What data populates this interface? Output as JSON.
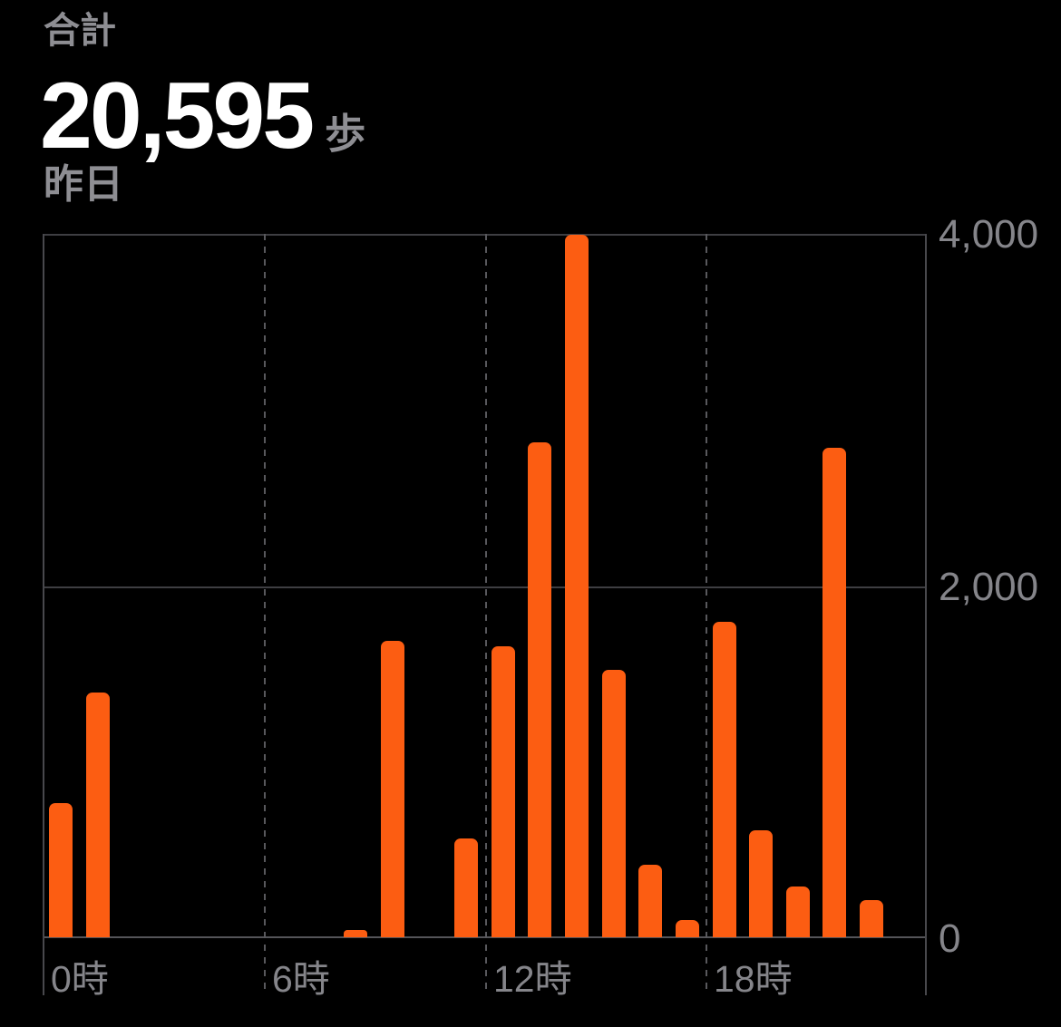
{
  "header": {
    "total_label": "合計",
    "total_value": "20,595",
    "unit": "歩",
    "period_label": "昨日"
  },
  "colors": {
    "background": "#000000",
    "bar": "#fc5d12",
    "value_text": "#ffffff",
    "header_gray": "#8e8e93",
    "axis_label": "#85858a",
    "gridline": "#3e3e42",
    "baseline": "#545458",
    "border_line": "#48484c",
    "dashed_line": "#58585c"
  },
  "chart_data": {
    "type": "bar",
    "title": "合計 20,595 歩 (昨日)",
    "xlabel": "",
    "ylabel": "",
    "unit": "歩",
    "xlim_hours": [
      0,
      24
    ],
    "ylim": [
      0,
      4000
    ],
    "grid": {
      "vertical": "dashed at 6,12,18; solid borders at 0,24",
      "horizontal": "solid at 0,2000,4000"
    },
    "legend": "none",
    "y_ticks": [
      {
        "value": 4000,
        "label": "4,000"
      },
      {
        "value": 2000,
        "label": "2,000"
      },
      {
        "value": 0,
        "label": "0"
      }
    ],
    "x_ticks": [
      {
        "hour": 0,
        "label": "0時"
      },
      {
        "hour": 6,
        "label": "6時"
      },
      {
        "hour": 12,
        "label": "12時"
      },
      {
        "hour": 18,
        "label": "18時"
      }
    ],
    "bars": [
      {
        "hour": 0,
        "steps": 760
      },
      {
        "hour": 1,
        "steps": 1390
      },
      {
        "hour": 8,
        "steps": 40
      },
      {
        "hour": 9,
        "steps": 1685
      },
      {
        "hour": 11,
        "steps": 560
      },
      {
        "hour": 12,
        "steps": 1650
      },
      {
        "hour": 13,
        "steps": 2810
      },
      {
        "hour": 14,
        "steps": 3990
      },
      {
        "hour": 15,
        "steps": 1520
      },
      {
        "hour": 16,
        "steps": 410
      },
      {
        "hour": 17,
        "steps": 100
      },
      {
        "hour": 18,
        "steps": 1790
      },
      {
        "hour": 19,
        "steps": 610
      },
      {
        "hour": 20,
        "steps": 290
      },
      {
        "hour": 21,
        "steps": 2780
      },
      {
        "hour": 22,
        "steps": 210
      }
    ]
  }
}
